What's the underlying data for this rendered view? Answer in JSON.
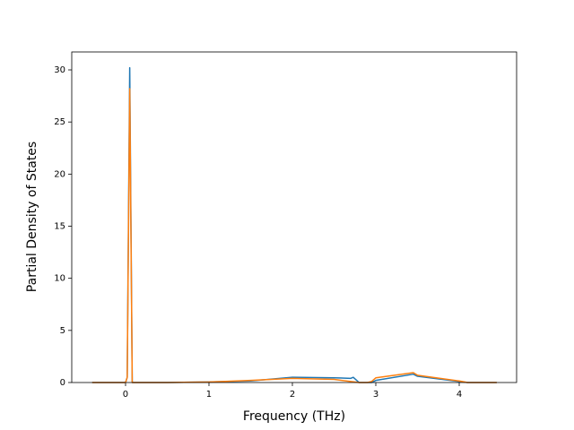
{
  "chart_data": {
    "type": "line",
    "xlabel": "Frequency (THz)",
    "ylabel": "Partial Density of States",
    "xlim": [
      -0.645,
      4.688
    ],
    "ylim": [
      0,
      31.72
    ],
    "xticks": [
      0,
      1,
      2,
      3,
      4
    ],
    "yticks": [
      0,
      5,
      10,
      15,
      20,
      25,
      30
    ],
    "series": [
      {
        "color": "#1f77b4",
        "x": [
          -0.4,
          0,
          0.02,
          0.05,
          0.08,
          0.1,
          0.5,
          1,
          1.5,
          2,
          2.5,
          2.7,
          2.73,
          2.8,
          2.9,
          2.95,
          3,
          3.45,
          3.5,
          4,
          4.1,
          4.45
        ],
        "values": [
          0,
          0,
          0.5,
          30.2,
          0,
          0,
          0,
          0.05,
          0.15,
          0.5,
          0.45,
          0.4,
          0.5,
          0,
          0,
          0,
          0.2,
          0.8,
          0.6,
          0.1,
          0,
          0
        ]
      },
      {
        "color": "#ff7f0e",
        "x": [
          -0.4,
          0,
          0.02,
          0.05,
          0.08,
          0.1,
          0.5,
          1,
          1.5,
          2,
          2.5,
          2.7,
          2.8,
          2.9,
          2.95,
          3,
          3.45,
          3.5,
          4,
          4.1,
          4.45
        ],
        "values": [
          0,
          0,
          0.5,
          28.2,
          0,
          0,
          0,
          0.05,
          0.2,
          0.4,
          0.3,
          0.1,
          0,
          0,
          0.1,
          0.45,
          0.95,
          0.7,
          0.15,
          0,
          0
        ]
      }
    ]
  }
}
